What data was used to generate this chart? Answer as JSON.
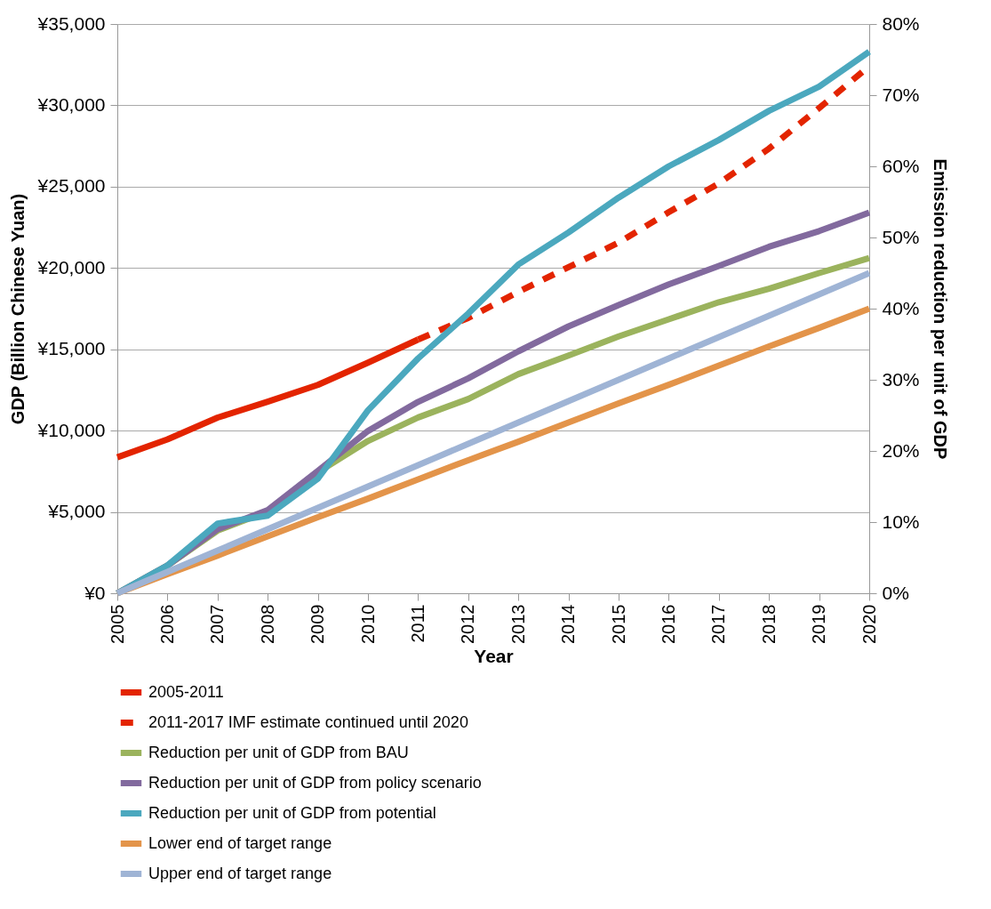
{
  "chart_data": {
    "type": "line",
    "xlabel": "Year",
    "ylabel": "GDP (Billion Chinese Yuan)",
    "y2label": "Emission reduction per unit of GDP",
    "categories": [
      "2005",
      "2006",
      "2007",
      "2008",
      "2009",
      "2010",
      "2011",
      "2012",
      "2013",
      "2014",
      "2015",
      "2016",
      "2017",
      "2018",
      "2019",
      "2020"
    ],
    "ylim": [
      0,
      35000
    ],
    "yticks": [
      {
        "value": 0,
        "label": "¥0"
      },
      {
        "value": 5000,
        "label": "¥5,000"
      },
      {
        "value": 10000,
        "label": "¥10,000"
      },
      {
        "value": 15000,
        "label": "¥15,000"
      },
      {
        "value": 20000,
        "label": "¥20,000"
      },
      {
        "value": 25000,
        "label": "¥25,000"
      },
      {
        "value": 30000,
        "label": "¥30,000"
      },
      {
        "value": 35000,
        "label": "¥35,000"
      }
    ],
    "y2lim": [
      0,
      80
    ],
    "y2ticks": [
      {
        "value": 0,
        "label": "0%"
      },
      {
        "value": 10,
        "label": "10%"
      },
      {
        "value": 20,
        "label": "20%"
      },
      {
        "value": 30,
        "label": "30%"
      },
      {
        "value": 40,
        "label": "40%"
      },
      {
        "value": 50,
        "label": "50%"
      },
      {
        "value": 60,
        "label": "60%"
      },
      {
        "value": 70,
        "label": "70%"
      },
      {
        "value": 80,
        "label": "80%"
      }
    ],
    "grid": "y",
    "legend": "bottom",
    "series": [
      {
        "name": "2005-2011",
        "color": "#e32400",
        "line_style": "solid",
        "values": [
          8360,
          9460,
          10800,
          11780,
          12810,
          14180,
          15600,
          null,
          null,
          null,
          null,
          null,
          null,
          null,
          null,
          null
        ]
      },
      {
        "name": "2011-2017 IMF estimate continued until 2020",
        "color": "#e32400",
        "line_style": "dashed",
        "values": [
          null,
          null,
          null,
          null,
          null,
          null,
          15600,
          16930,
          18530,
          20050,
          21560,
          23430,
          25200,
          27340,
          29830,
          32410
        ]
      },
      {
        "name": "Reduction per unit of GDP from BAU",
        "color": "#9bb35d",
        "axis": "y2",
        "line_style": "solid",
        "values": [
          0,
          3.9,
          8.8,
          11.5,
          17.0,
          21.4,
          24.7,
          27.3,
          30.8,
          33.4,
          36.1,
          38.5,
          40.9,
          42.8,
          45.0,
          47.1
        ]
      },
      {
        "name": "Reduction per unit of GDP from policy scenario",
        "color": "#826a9e",
        "axis": "y2",
        "line_style": "solid",
        "values": [
          0,
          3.9,
          9.0,
          11.7,
          17.2,
          22.8,
          26.9,
          30.2,
          34.0,
          37.5,
          40.5,
          43.4,
          46.0,
          48.7,
          50.9,
          53.5
        ]
      },
      {
        "name": "Reduction per unit of GDP from potential",
        "color": "#4ba8be",
        "axis": "y2",
        "line_style": "solid",
        "values": [
          0,
          3.9,
          9.8,
          10.9,
          16.1,
          25.7,
          33.0,
          39.3,
          46.2,
          50.7,
          55.6,
          60.0,
          63.7,
          67.8,
          71.2,
          76.1
        ]
      },
      {
        "name": "Lower end of target range",
        "color": "#e3944a",
        "axis": "y2",
        "line_style": "solid",
        "values": [
          0,
          2.7,
          5.3,
          8.0,
          10.7,
          13.3,
          16.0,
          18.7,
          21.3,
          24.0,
          26.7,
          29.3,
          32.0,
          34.7,
          37.3,
          40.0
        ]
      },
      {
        "name": "Upper end of target range",
        "color": "#9fb4d5",
        "axis": "y2",
        "line_style": "solid",
        "values": [
          0,
          3,
          6,
          9,
          12,
          15,
          18,
          21,
          24,
          27,
          30,
          33,
          36,
          39,
          42,
          45
        ]
      }
    ]
  }
}
